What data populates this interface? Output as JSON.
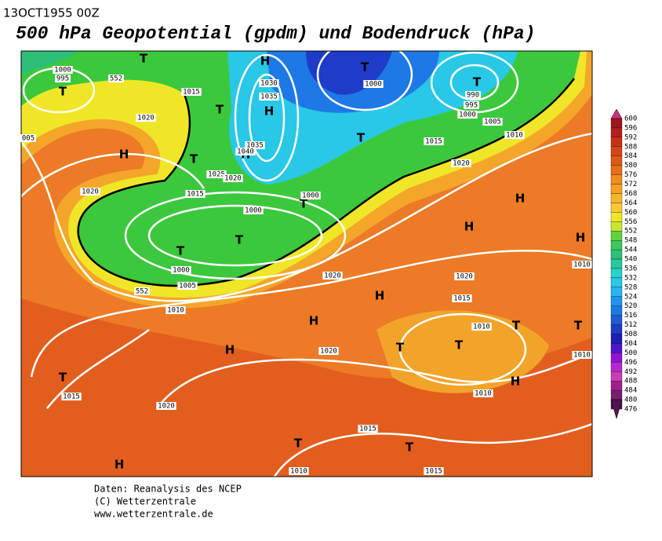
{
  "header": {
    "date": "13OCT1955 00Z",
    "title": "500 hPa Geopotential (gpdm) und Bodendruck (hPa)"
  },
  "colorbar": {
    "levels": [
      600,
      596,
      592,
      588,
      584,
      580,
      576,
      572,
      568,
      564,
      560,
      556,
      552,
      548,
      544,
      540,
      536,
      532,
      528,
      524,
      520,
      516,
      512,
      508,
      504,
      500,
      496,
      492,
      488,
      484,
      480,
      476
    ],
    "colors": [
      "#c8327a",
      "#a0141e",
      "#b41e1e",
      "#c83214",
      "#d24614",
      "#dc5a14",
      "#e66e14",
      "#f08c1e",
      "#f5a01e",
      "#f8b428",
      "#fac832",
      "#f0e628",
      "#c8e632",
      "#64d23c",
      "#3cc85a",
      "#2dbe78",
      "#28c8a0",
      "#28d2c8",
      "#28c8e6",
      "#28b4f0",
      "#1e96f0",
      "#1e78e6",
      "#1e5ad2",
      "#1e3cc8",
      "#1e1eb4",
      "#5014c8",
      "#8c14d2",
      "#b428d2",
      "#c83cb4",
      "#a01e8c",
      "#781e6e",
      "#501450"
    ]
  },
  "map": {
    "pressure_centers": [
      "T",
      "T",
      "T",
      "T",
      "T",
      "T",
      "T",
      "T",
      "T",
      "T",
      "T",
      "T",
      "T",
      "T",
      "T",
      "T",
      "T",
      "H",
      "H",
      "H",
      "H",
      "H",
      "H",
      "H",
      "H",
      "H",
      "H",
      "H",
      "H"
    ],
    "isobar_labels": [
      "1000",
      "995",
      "1015",
      "1030",
      "1035",
      "1020",
      "1035",
      "1040",
      "1025",
      "1020",
      "1015",
      "1000",
      "1000",
      "1020",
      "1000",
      "990",
      "995",
      "1000",
      "1005",
      "1010",
      "1015",
      "1020",
      "1000",
      "1005",
      "1010",
      "1020",
      "1020",
      "1015",
      "1010",
      "1010",
      "1020",
      "1010",
      "1015",
      "1020",
      "1015",
      "1010",
      "1015",
      "1010",
      "005",
      "552",
      "552"
    ]
  },
  "footer": {
    "source": "Daten: Reanalysis des NCEP",
    "copyright": "(C) Wetterzentrale",
    "url": "www.wetterzentrale.de"
  }
}
